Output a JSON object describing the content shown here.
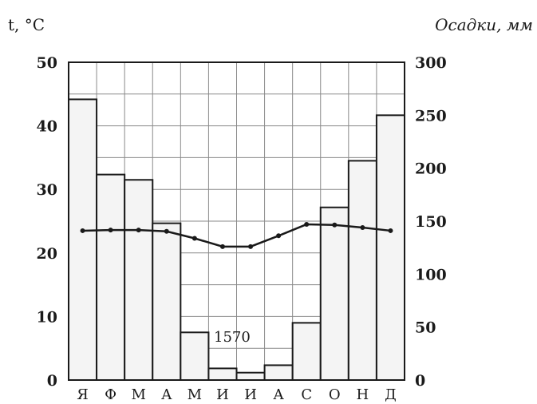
{
  "chart_data": {
    "type": "bar+line",
    "left_axis_label": "t, °C",
    "right_axis_label": "Осадки, мм",
    "months": [
      "Я",
      "Ф",
      "М",
      "А",
      "М",
      "И",
      "И",
      "А",
      "С",
      "О",
      "Н",
      "Д"
    ],
    "left_ticks": [
      "50",
      "40",
      "30",
      "20",
      "10",
      "0"
    ],
    "right_ticks": [
      "300",
      "250",
      "200",
      "150",
      "100",
      "50",
      "0"
    ],
    "ylim_left": [
      0,
      50
    ],
    "ylim_right": [
      0,
      300
    ],
    "grid": true,
    "annotation": "1570",
    "series": [
      {
        "kind": "bar",
        "axis": "right",
        "values": [
          265,
          194,
          189,
          148,
          45,
          11,
          7,
          14,
          54,
          163,
          207,
          250
        ]
      },
      {
        "kind": "line",
        "axis": "left",
        "values": [
          23.5,
          23.6,
          23.6,
          23.4,
          22.3,
          21.0,
          21.0,
          22.7,
          24.5,
          24.4,
          24.0,
          23.5
        ]
      }
    ]
  }
}
